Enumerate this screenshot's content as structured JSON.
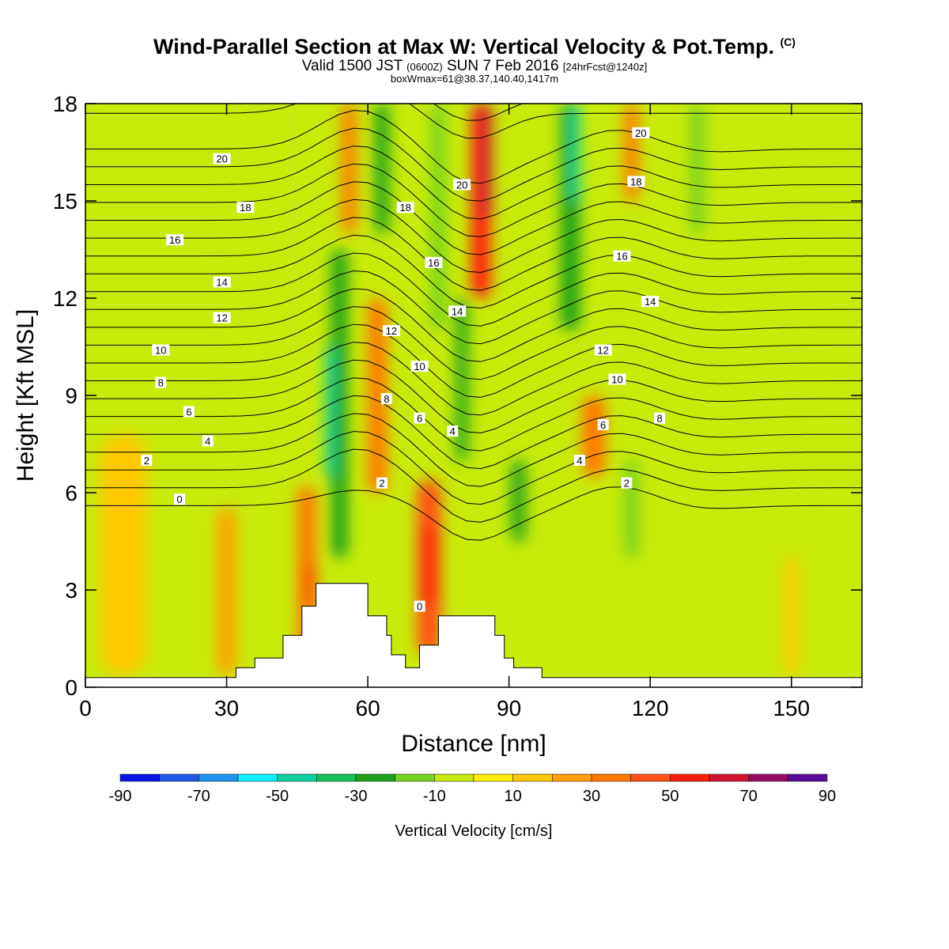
{
  "title": {
    "main": "Wind-Parallel Section at Max W: Vertical Velocity & Pot.Temp.",
    "copyright": "(C)",
    "valid_a": "Valid 1500 JST",
    "valid_b": "(0600Z)",
    "valid_c": "SUN 7 Feb 2016",
    "valid_d": "[24hrFcst@1240z]",
    "box": "boxWmax=61@38.37,140.40,1417m"
  },
  "chart_data": {
    "type": "heatmap",
    "xlabel": "Distance [nm]",
    "ylabel": "Height [Kft MSL]",
    "xlim": [
      0,
      165
    ],
    "ylim": [
      0,
      18
    ],
    "xticks": [
      0,
      30,
      60,
      90,
      120,
      150
    ],
    "yticks": [
      0,
      3,
      6,
      9,
      12,
      15,
      18
    ],
    "shaded_field": "Vertical Velocity [cm/s]",
    "contour_field": "Potential Temperature [C]",
    "colorbar": {
      "label": "Vertical Velocity [cm/s]",
      "tick_labels": [
        "-90",
        "-70",
        "-50",
        "-30",
        "-10",
        "10",
        "30",
        "50",
        "70",
        "90"
      ],
      "bounds": [
        -90,
        -80,
        -70,
        -60,
        -50,
        -40,
        -30,
        -20,
        -10,
        0,
        10,
        20,
        30,
        40,
        50,
        60,
        70,
        80,
        90
      ],
      "colors": [
        "#0a14e6",
        "#1e5ae6",
        "#1e96f0",
        "#0af0ff",
        "#0ad2a0",
        "#14c35a",
        "#1ea01e",
        "#78d21e",
        "#c8eb0a",
        "#fff000",
        "#ffc800",
        "#ffa000",
        "#ff7800",
        "#ff5014",
        "#ff1e0a",
        "#d21432",
        "#960a64",
        "#5a0a96"
      ]
    },
    "vertical_velocity_bands": [
      {
        "x": 8,
        "w": 10,
        "z0": 0.4,
        "z1": 7.8,
        "value": 10
      },
      {
        "x": 30,
        "w": 4,
        "z0": 0.4,
        "z1": 5.5,
        "value": 20
      },
      {
        "x": 44,
        "w": 3,
        "z0": 10,
        "z1": 18,
        "value": -10
      },
      {
        "x": 47,
        "w": 4,
        "z0": 0.8,
        "z1": 6.2,
        "value": 30
      },
      {
        "x": 48,
        "w": 1.5,
        "z0": 2.5,
        "z1": 3.8,
        "value": 50
      },
      {
        "x": 54,
        "w": 3.5,
        "z0": 4,
        "z1": 13.5,
        "value": -30
      },
      {
        "x": 52,
        "w": 1.8,
        "z0": 6.5,
        "z1": 10.5,
        "value": -50
      },
      {
        "x": 56,
        "w": 3,
        "z0": 14,
        "z1": 18,
        "value": 30
      },
      {
        "x": 62,
        "w": 4,
        "z0": 6,
        "z1": 12,
        "value": 30
      },
      {
        "x": 63,
        "w": 3,
        "z0": 14,
        "z1": 18,
        "value": -30
      },
      {
        "x": 73,
        "w": 5,
        "z0": 1,
        "z1": 6.4,
        "value": 40
      },
      {
        "x": 73,
        "w": 3,
        "z0": 2.5,
        "z1": 5,
        "value": 50
      },
      {
        "x": 75,
        "w": 3,
        "z0": 11,
        "z1": 18,
        "value": -20
      },
      {
        "x": 80,
        "w": 2.5,
        "z0": 7,
        "z1": 12,
        "value": -30
      },
      {
        "x": 84,
        "w": 4,
        "z0": 12,
        "z1": 18,
        "value": 50
      },
      {
        "x": 85,
        "w": 2.5,
        "z0": 14.5,
        "z1": 18,
        "value": 60
      },
      {
        "x": 92,
        "w": 3,
        "z0": 4.5,
        "z1": 7,
        "value": -30
      },
      {
        "x": 103,
        "w": 4,
        "z0": 11,
        "z1": 18,
        "value": -30
      },
      {
        "x": 104,
        "w": 2,
        "z0": 15,
        "z1": 18,
        "value": -50
      },
      {
        "x": 108,
        "w": 5,
        "z0": 6.5,
        "z1": 9,
        "value": 30
      },
      {
        "x": 116,
        "w": 3,
        "z0": 15,
        "z1": 18,
        "value": 30
      },
      {
        "x": 116,
        "w": 3,
        "z0": 4,
        "z1": 7,
        "value": -20
      },
      {
        "x": 130,
        "w": 3,
        "z0": 14,
        "z1": 18,
        "value": -20
      },
      {
        "x": 150,
        "w": 3,
        "z0": 0.4,
        "z1": 4,
        "value": 10
      }
    ],
    "terrain_nm_kft": [
      [
        0,
        0.3
      ],
      [
        30,
        0.3
      ],
      [
        32,
        0.6
      ],
      [
        36,
        0.9
      ],
      [
        42,
        1.6
      ],
      [
        46,
        2.5
      ],
      [
        49,
        3.2
      ],
      [
        58,
        3.2
      ],
      [
        60,
        2.2
      ],
      [
        62,
        2.2
      ],
      [
        64,
        1.6
      ],
      [
        65,
        1.0
      ],
      [
        68,
        0.6
      ],
      [
        71,
        1.3
      ],
      [
        75,
        2.2
      ],
      [
        84,
        2.2
      ],
      [
        87,
        1.6
      ],
      [
        89,
        0.9
      ],
      [
        91,
        0.6
      ],
      [
        97,
        0.3
      ],
      [
        165,
        0.3
      ]
    ],
    "isentrope_labels": [
      {
        "text": "20",
        "x": 29,
        "z": 16.3
      },
      {
        "text": "18",
        "x": 34,
        "z": 14.8
      },
      {
        "text": "16",
        "x": 19,
        "z": 13.8
      },
      {
        "text": "14",
        "x": 29,
        "z": 12.5
      },
      {
        "text": "12",
        "x": 29,
        "z": 11.4
      },
      {
        "text": "10",
        "x": 16,
        "z": 10.4
      },
      {
        "text": "8",
        "x": 16,
        "z": 9.4
      },
      {
        "text": "6",
        "x": 22,
        "z": 8.5
      },
      {
        "text": "4",
        "x": 26,
        "z": 7.6
      },
      {
        "text": "2",
        "x": 13,
        "z": 7.0
      },
      {
        "text": "0",
        "x": 20,
        "z": 5.8
      },
      {
        "text": "18",
        "x": 68,
        "z": 14.8
      },
      {
        "text": "20",
        "x": 80,
        "z": 15.5
      },
      {
        "text": "16",
        "x": 74,
        "z": 13.1
      },
      {
        "text": "14",
        "x": 79,
        "z": 11.6
      },
      {
        "text": "12",
        "x": 65,
        "z": 11.0
      },
      {
        "text": "10",
        "x": 71,
        "z": 9.9
      },
      {
        "text": "8",
        "x": 64,
        "z": 8.9
      },
      {
        "text": "6",
        "x": 71,
        "z": 8.3
      },
      {
        "text": "4",
        "x": 78,
        "z": 7.9
      },
      {
        "text": "2",
        "x": 63,
        "z": 6.3
      },
      {
        "text": "0",
        "x": 71,
        "z": 2.5
      },
      {
        "text": "20",
        "x": 118,
        "z": 17.1
      },
      {
        "text": "18",
        "x": 117,
        "z": 15.6
      },
      {
        "text": "16",
        "x": 114,
        "z": 13.3
      },
      {
        "text": "14",
        "x": 120,
        "z": 11.9
      },
      {
        "text": "12",
        "x": 110,
        "z": 10.4
      },
      {
        "text": "10",
        "x": 113,
        "z": 9.5
      },
      {
        "text": "8",
        "x": 122,
        "z": 8.3
      },
      {
        "text": "6",
        "x": 110,
        "z": 8.1
      },
      {
        "text": "4",
        "x": 105,
        "z": 7.0
      },
      {
        "text": "2",
        "x": 115,
        "z": 6.3
      }
    ]
  }
}
